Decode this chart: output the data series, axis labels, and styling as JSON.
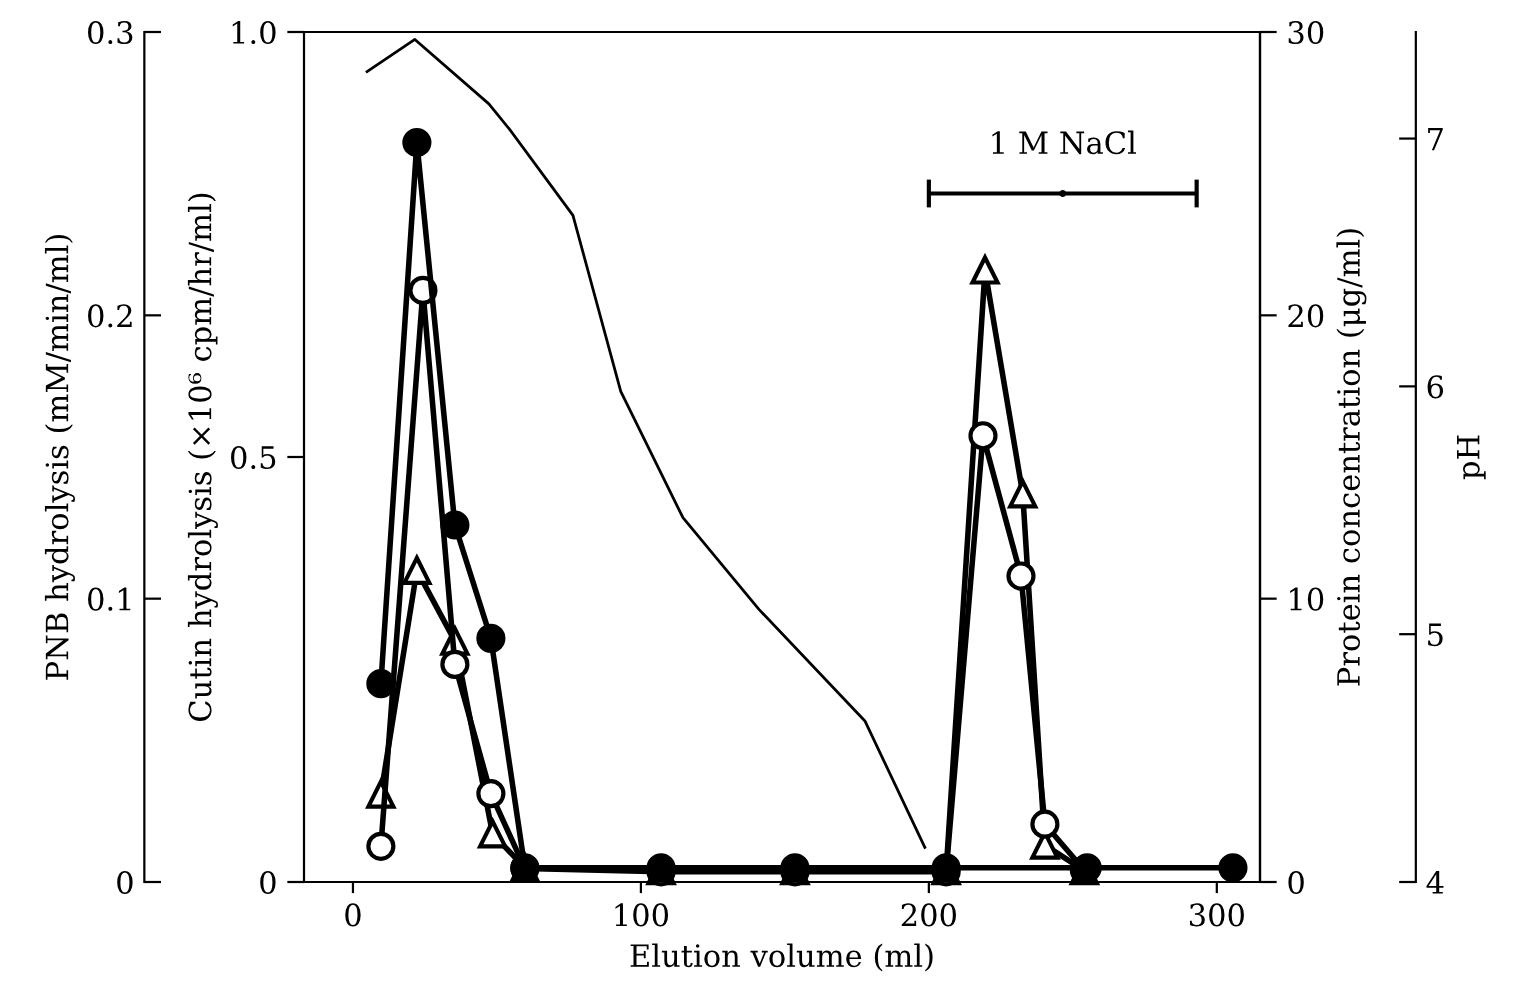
{
  "chart_data": [
    {
      "type": "line",
      "xlabel": "Elution volume (ml)",
      "ylabel": "Cutin hydrolysis (×10⁶ cpm/hr/ml)",
      "y2label": "PNB hydrolysis (mM/min/ml)",
      "xlim": [
        -17,
        315
      ],
      "xticks": [
        0,
        100,
        200,
        300
      ],
      "ylim": [
        0,
        1.0
      ],
      "yticks": [
        0,
        0.5,
        {
          "value": 1.0,
          "label": "1.0"
        }
      ],
      "y2lim": [
        0,
        0.3
      ],
      "y2ticks": [
        0,
        0.1,
        0.2,
        0.3
      ],
      "grid": false,
      "series": [
        {
          "type": "scatter",
          "name": "1 M NaCl",
          "color": "#000000",
          "marker": "none",
          "x": [
            246.5
          ],
          "values": [
            0.81
          ],
          "xerrors": [
            [
              200,
              293
            ]
          ]
        },
        {
          "axis": "y2",
          "color": "#000000",
          "marker": "circle",
          "line_style": "solid",
          "x": [
            9.7,
            22.2,
            35.4,
            47.9,
            59.7,
            107,
            153.5,
            206,
            255,
            305.6
          ],
          "values": [
            0.07,
            0.261,
            0.126,
            0.086,
            0.005,
            0.005,
            0.005,
            0.005,
            0.005,
            0.005
          ]
        },
        {
          "color": "#000000",
          "marker": "circle",
          "line_style": "solid",
          "x": [
            9.7,
            24.3,
            35.4,
            47.9,
            59.7,
            107,
            153.5,
            206,
            218.8,
            232,
            240.3,
            254
          ],
          "values": [
            0.042,
            0.696,
            0.256,
            0.104,
            0.016,
            0.012,
            0.012,
            0.012,
            0.525,
            0.36,
            0.068,
            0.014
          ]
        }
      ]
    },
    {
      "type": "line",
      "ylabel": "Protein concentration (μg/ml)",
      "y2label": "pH",
      "tick_labels": "y",
      "xlim": [
        -17,
        315
      ],
      "ylim": [
        0,
        30
      ],
      "yticks": [
        0,
        10,
        20,
        30
      ],
      "y2lim": [
        4,
        7.43
      ],
      "y2ticks": [
        4,
        5,
        6,
        7
      ],
      "grid": false,
      "series": [
        {
          "color": "#000000",
          "marker": "triangle",
          "line_style": "solid",
          "x": [
            9.7,
            22.2,
            35.4,
            48.5,
            59.7,
            107,
            153.5,
            206,
            219.5,
            232.6,
            240.3,
            254
          ],
          "values": [
            3.1,
            11.0,
            8.5,
            1.7,
            0.5,
            0.4,
            0.4,
            0.4,
            21.6,
            13.7,
            1.3,
            0.4
          ]
        },
        {
          "axis": "y2",
          "color": "#000000",
          "marker": "none",
          "line_style": "solid",
          "x": [
            4.9,
            21.5,
            47.2,
            54.2,
            76.4,
            93,
            114.6,
            141,
            177.8,
            198.6
          ],
          "values": [
            7.27,
            7.4,
            7.14,
            7.04,
            6.69,
            5.98,
            5.47,
            5.1,
            4.65,
            4.14
          ]
        }
      ]
    }
  ]
}
